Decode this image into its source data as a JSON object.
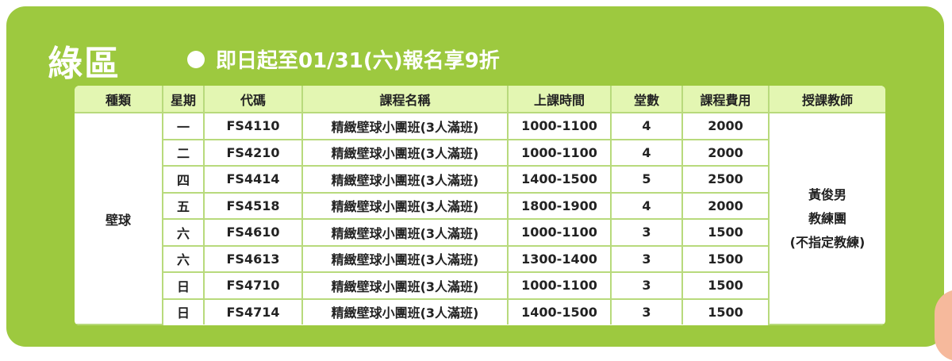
{
  "title": "綠區",
  "promo": "即日起至01/31(六)報名享9折",
  "colors": {
    "panel": "#9dc93f",
    "header": "#e3f6b2",
    "border": "#b8da7c"
  },
  "table": {
    "headers": [
      "種類",
      "星期",
      "代碼",
      "課程名稱",
      "上課時間",
      "堂數",
      "課程費用",
      "授課教師"
    ],
    "category": "壁球",
    "teacher": [
      "黃俊男",
      "教練團",
      "(不指定教練)"
    ],
    "rows": [
      {
        "day": "一",
        "code": "FS4110",
        "name": "精緻壁球小團班(3人滿班)",
        "time": "1000-1100",
        "sessions": "4",
        "fee": "2000"
      },
      {
        "day": "二",
        "code": "FS4210",
        "name": "精緻壁球小團班(3人滿班)",
        "time": "1000-1100",
        "sessions": "4",
        "fee": "2000"
      },
      {
        "day": "四",
        "code": "FS4414",
        "name": "精緻壁球小團班(3人滿班)",
        "time": "1400-1500",
        "sessions": "5",
        "fee": "2500"
      },
      {
        "day": "五",
        "code": "FS4518",
        "name": "精緻壁球小團班(3人滿班)",
        "time": "1800-1900",
        "sessions": "4",
        "fee": "2000"
      },
      {
        "day": "六",
        "code": "FS4610",
        "name": "精緻壁球小團班(3人滿班)",
        "time": "1000-1100",
        "sessions": "3",
        "fee": "1500"
      },
      {
        "day": "六",
        "code": "FS4613",
        "name": "精緻壁球小團班(3人滿班)",
        "time": "1300-1400",
        "sessions": "3",
        "fee": "1500"
      },
      {
        "day": "日",
        "code": "FS4710",
        "name": "精緻壁球小團班(3人滿班)",
        "time": "1000-1100",
        "sessions": "3",
        "fee": "1500"
      },
      {
        "day": "日",
        "code": "FS4714",
        "name": "精緻壁球小團班(3人滿班)",
        "time": "1400-1500",
        "sessions": "3",
        "fee": "1500"
      }
    ]
  }
}
